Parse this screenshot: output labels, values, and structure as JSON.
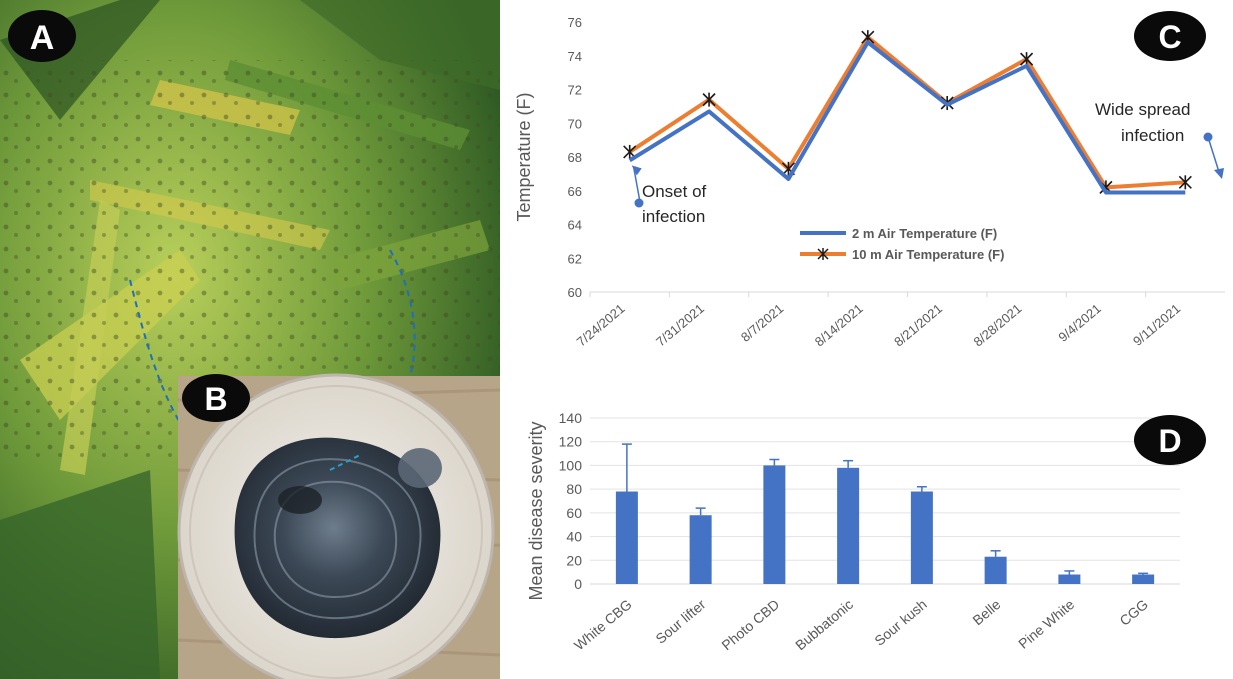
{
  "panels": {
    "a_label": "A",
    "b_label": "B",
    "c_label": "C",
    "d_label": "D"
  },
  "chart_data": [
    {
      "type": "line",
      "panel": "C",
      "categories": [
        "7/24/2021",
        "7/31/2021",
        "8/7/2021",
        "8/14/2021",
        "8/21/2021",
        "8/28/2021",
        "9/4/2021",
        "9/11/2021"
      ],
      "series": [
        {
          "name": "2 m Air Temperature (F)",
          "color": "#4472C4",
          "marker": "none",
          "values": [
            67.8,
            70.7,
            66.7,
            74.8,
            71.1,
            73.4,
            65.9,
            65.9
          ]
        },
        {
          "name": "10 m Air Temperature (F)",
          "color": "#ED7D31",
          "marker": "asterisk",
          "values": [
            68.3,
            71.4,
            67.3,
            75.1,
            71.2,
            73.8,
            66.2,
            66.5
          ]
        }
      ],
      "ylabel": "Temperature (F)",
      "ylim": [
        60,
        76
      ],
      "yticks": [
        60,
        62,
        64,
        66,
        68,
        70,
        72,
        74,
        76
      ],
      "legend_position": "bottom-center",
      "grid": false,
      "annotations": [
        {
          "text_lines": [
            "Onset of",
            "infection"
          ]
        },
        {
          "text_lines": [
            "Wide spread",
            "infection"
          ]
        }
      ]
    },
    {
      "type": "bar",
      "panel": "D",
      "categories": [
        "White CBG",
        "Sour lifter",
        "Photo CBD",
        "Bubbatonic",
        "Sour kush",
        "Belle",
        "Pine White",
        "CGG"
      ],
      "values": [
        78,
        58,
        100,
        98,
        78,
        23,
        8,
        8
      ],
      "errors": [
        40,
        6,
        5,
        6,
        4,
        5,
        3,
        1
      ],
      "color": "#4472C4",
      "ylabel": "Mean disease severity",
      "ylim": [
        0,
        140
      ],
      "yticks": [
        0,
        20,
        40,
        60,
        80,
        100,
        120,
        140
      ],
      "grid": true
    }
  ]
}
